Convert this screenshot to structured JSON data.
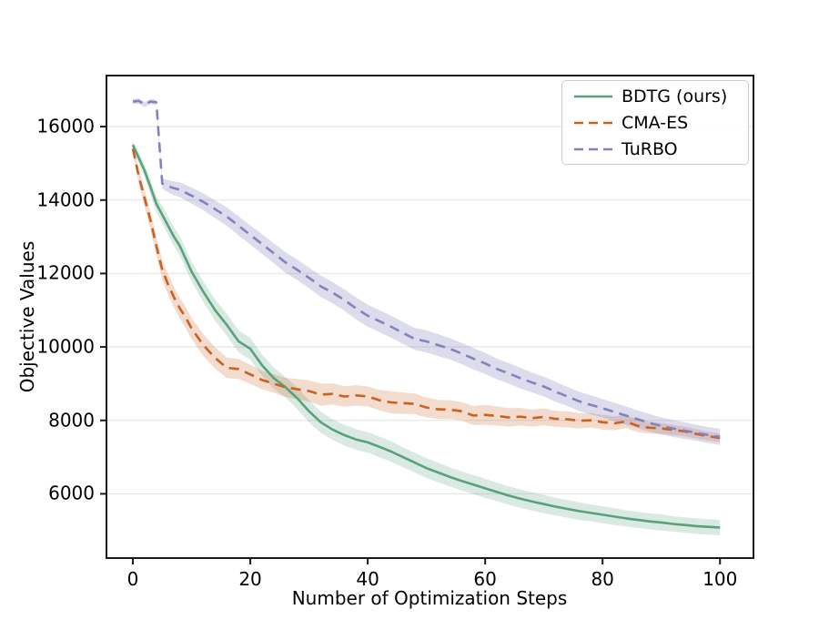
{
  "figure": {
    "background": "#ffffff",
    "frame_color": "#1a1a1a",
    "grid_color": "#e8e8e8"
  },
  "chart_data": {
    "type": "line",
    "title": "",
    "xlabel": "Number of Optimization Steps",
    "ylabel": "Objective Values",
    "xlim": [
      -4.5,
      105.7
    ],
    "ylim": [
      4250,
      17390
    ],
    "x_ticks": [
      0,
      20,
      40,
      60,
      80,
      100
    ],
    "y_ticks": [
      6000,
      8000,
      10000,
      12000,
      14000,
      16000
    ],
    "grid": "horizontal",
    "legend_position": "upper right",
    "x": [
      0,
      1,
      2,
      3,
      4,
      5,
      6,
      7,
      8,
      9,
      10,
      12,
      14,
      16,
      18,
      20,
      22,
      24,
      26,
      28,
      30,
      32,
      34,
      36,
      38,
      40,
      42,
      44,
      46,
      48,
      50,
      52,
      54,
      56,
      58,
      60,
      62,
      64,
      66,
      68,
      70,
      72,
      74,
      76,
      78,
      80,
      82,
      84,
      86,
      88,
      90,
      92,
      94,
      96,
      98,
      100
    ],
    "series": [
      {
        "name": "BDTG (ours)",
        "line_style": "solid",
        "color": "#58a17c",
        "band_color": "rgba(88,161,124,0.22)",
        "values": [
          15500,
          15150,
          14800,
          14350,
          13900,
          13600,
          13300,
          13000,
          12750,
          12400,
          12050,
          11500,
          11000,
          10600,
          10150,
          9950,
          9500,
          9150,
          8900,
          8600,
          8250,
          7950,
          7750,
          7600,
          7480,
          7400,
          7280,
          7150,
          7000,
          6850,
          6700,
          6580,
          6460,
          6350,
          6250,
          6150,
          6050,
          5950,
          5870,
          5790,
          5720,
          5650,
          5590,
          5530,
          5480,
          5430,
          5380,
          5330,
          5290,
          5250,
          5220,
          5180,
          5150,
          5120,
          5100,
          5080
        ],
        "band": [
          120,
          150,
          180,
          200,
          220,
          240,
          250,
          260,
          270,
          270,
          270,
          280,
          290,
          300,
          300,
          300,
          290,
          290,
          280,
          290,
          300,
          290,
          280,
          280,
          280,
          280,
          280,
          280,
          270,
          270,
          270,
          270,
          260,
          260,
          260,
          260,
          250,
          250,
          250,
          250,
          250,
          240,
          240,
          240,
          230,
          230,
          230,
          220,
          220,
          220,
          220,
          210,
          210,
          210,
          210,
          210
        ]
      },
      {
        "name": "CMA-ES",
        "line_style": "dashed",
        "color": "#ca611f",
        "band_color": "rgba(202,97,31,0.22)",
        "values": [
          15400,
          14650,
          14050,
          13450,
          12750,
          12100,
          11700,
          11350,
          11050,
          10800,
          10500,
          10050,
          9700,
          9430,
          9400,
          9250,
          9100,
          9000,
          8900,
          8850,
          8800,
          8700,
          8720,
          8650,
          8680,
          8650,
          8550,
          8490,
          8470,
          8450,
          8350,
          8300,
          8290,
          8250,
          8130,
          8150,
          8120,
          8080,
          8100,
          8060,
          8095,
          8040,
          8030,
          7990,
          8000,
          7950,
          7920,
          7970,
          7850,
          7800,
          7780,
          7740,
          7700,
          7630,
          7570,
          7520
        ],
        "band": [
          150,
          200,
          230,
          250,
          260,
          270,
          280,
          280,
          280,
          290,
          290,
          300,
          290,
          280,
          270,
          260,
          250,
          250,
          260,
          280,
          290,
          300,
          290,
          280,
          280,
          270,
          280,
          300,
          290,
          280,
          270,
          260,
          260,
          250,
          260,
          270,
          260,
          250,
          240,
          230,
          230,
          220,
          220,
          210,
          200,
          200,
          190,
          180,
          170,
          160,
          150,
          140,
          130,
          130,
          120,
          120
        ]
      },
      {
        "name": "TuRBO",
        "line_style": "dashed",
        "color": "#8482bd",
        "band_color": "rgba(132,130,189,0.28)",
        "values": [
          16680,
          16700,
          16600,
          16680,
          16660,
          14450,
          14380,
          14320,
          14280,
          14200,
          14120,
          13950,
          13750,
          13550,
          13300,
          13050,
          12800,
          12550,
          12300,
          12100,
          11880,
          11650,
          11480,
          11280,
          11050,
          10850,
          10700,
          10550,
          10380,
          10220,
          10150,
          10050,
          9950,
          9820,
          9680,
          9550,
          9400,
          9280,
          9150,
          9030,
          8920,
          8780,
          8650,
          8520,
          8420,
          8330,
          8230,
          8130,
          8030,
          7930,
          7850,
          7780,
          7720,
          7660,
          7600,
          7550
        ],
        "band": [
          70,
          70,
          70,
          70,
          70,
          140,
          170,
          190,
          200,
          210,
          220,
          230,
          240,
          250,
          260,
          260,
          270,
          270,
          280,
          280,
          280,
          290,
          290,
          290,
          300,
          300,
          300,
          300,
          300,
          300,
          300,
          300,
          290,
          290,
          290,
          290,
          280,
          280,
          280,
          270,
          270,
          270,
          260,
          260,
          260,
          250,
          250,
          250,
          240,
          240,
          230,
          230,
          230,
          220,
          220,
          220
        ]
      }
    ]
  }
}
